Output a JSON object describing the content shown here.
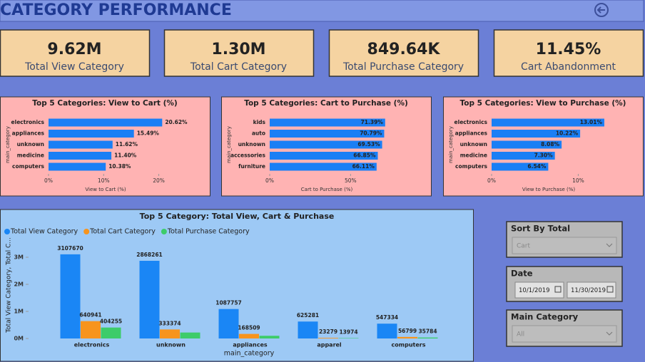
{
  "header": {
    "title": "CATEGORY PERFORMANCE"
  },
  "kpis": [
    {
      "value": "9.62M",
      "label": "Total View Category"
    },
    {
      "value": "1.30M",
      "label": "Total Cart Category"
    },
    {
      "value": "849.64K",
      "label": "Total Purchase Category"
    },
    {
      "value": "11.45%",
      "label": "Cart Abandonment"
    }
  ],
  "chart_data": [
    {
      "type": "hbar",
      "title": "Top 5 Categories: View to Cart (%)",
      "x_label": "View to Cart (%)",
      "y_label": "main_category",
      "categories": [
        "electronics",
        "appliances",
        "unknown",
        "medicine",
        "computers"
      ],
      "values": [
        20.62,
        15.49,
        11.62,
        11.4,
        10.38
      ],
      "value_labels": [
        "20.62%",
        "15.49%",
        "11.62%",
        "11.40%",
        "10.38%"
      ],
      "color": "#1a7ff5",
      "xlim": [
        0,
        22
      ],
      "xticks": [
        {
          "value": 0,
          "label": "0%"
        },
        {
          "value": 10,
          "label": "10%"
        },
        {
          "value": 20,
          "label": "20%"
        }
      ]
    },
    {
      "type": "hbar",
      "title": "Top 5 Categories: Cart to Purchase (%)",
      "x_label": "Cart to Purchase (%)",
      "y_label": "main_category",
      "categories": [
        "kids",
        "auto",
        "unknown",
        "accessories",
        "furniture"
      ],
      "values": [
        71.39,
        70.79,
        69.53,
        66.85,
        66.11
      ],
      "value_labels": [
        "71.39%",
        "70.79%",
        "69.53%",
        "66.85%",
        "66.11%"
      ],
      "color": "#1a7ff5",
      "xlim": [
        0,
        75
      ],
      "xticks": [
        {
          "value": 0,
          "label": "0%"
        },
        {
          "value": 50,
          "label": "50%"
        }
      ]
    },
    {
      "type": "hbar",
      "title": "Top 5 Categories: View to Purchase (%)",
      "x_label": "View to Purchase (%)",
      "y_label": "main_category",
      "categories": [
        "electronics",
        "appliances",
        "unknown",
        "medicine",
        "computers"
      ],
      "values": [
        13.01,
        10.22,
        8.08,
        7.3,
        6.54
      ],
      "value_labels": [
        "13.01%",
        "10.22%",
        "8.08%",
        "7.30%",
        "6.54%"
      ],
      "color": "#1a7ff5",
      "xlim": [
        0,
        14
      ],
      "xticks": [
        {
          "value": 0,
          "label": "0%"
        },
        {
          "value": 10,
          "label": "10%"
        }
      ]
    },
    {
      "type": "bar",
      "title": "Top 5 Category: Total View, Cart & Purchase",
      "x_label": "main_category",
      "y_label": "Total View Category, Total C...",
      "categories": [
        "electronics",
        "unknown",
        "appliances",
        "apparel",
        "computers"
      ],
      "series": [
        {
          "name": "Total View Category",
          "color": "#1a86f5",
          "values": [
            3107670,
            2868261,
            1087757,
            625281,
            547334
          ],
          "value_labels": [
            "3107670",
            "2868261",
            "1087757",
            "625281",
            "547334"
          ]
        },
        {
          "name": "Total Cart Category",
          "color": "#f7941d",
          "values": [
            640941,
            333374,
            168509,
            23279,
            56799
          ],
          "value_labels": [
            "640941",
            "333374",
            "168509",
            "23279",
            "56799"
          ]
        },
        {
          "name": "Total Purchase Category",
          "color": "#3dcc6a",
          "values": [
            404255,
            220000,
            100000,
            13974,
            35784
          ],
          "value_labels": [
            "404255",
            null,
            null,
            "13974",
            "35784"
          ]
        }
      ],
      "ylim": [
        0,
        3500000
      ],
      "yticks": [
        {
          "value": 0,
          "label": "0M"
        },
        {
          "value": 1000000,
          "label": "1M"
        },
        {
          "value": 2000000,
          "label": "2M"
        },
        {
          "value": 3000000,
          "label": "3M"
        }
      ]
    }
  ],
  "filters": {
    "sort": {
      "label": "Sort By Total",
      "value": "Cart"
    },
    "date": {
      "label": "Date",
      "start": "10/1/2019",
      "end": "11/30/2019"
    },
    "category": {
      "label": "Main Category",
      "value": "All"
    }
  }
}
